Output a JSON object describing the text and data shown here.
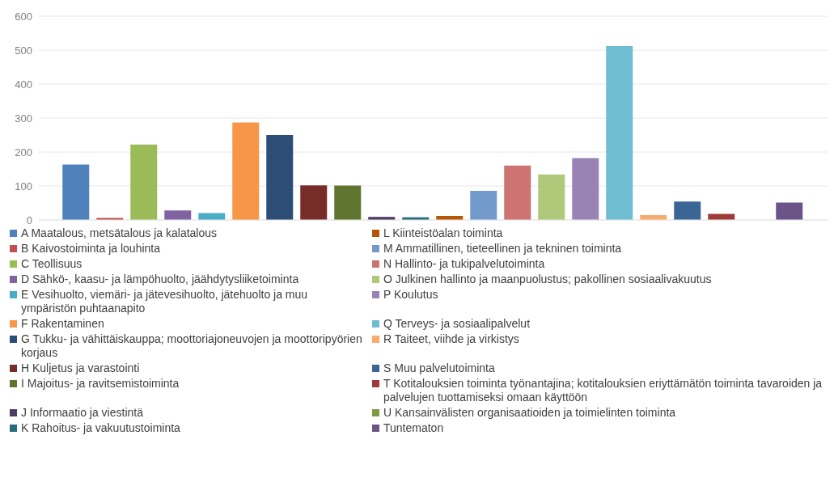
{
  "chart_data": {
    "type": "bar",
    "categories": [
      null
    ],
    "series": [
      {
        "name": "A Maatalous, metsätalous ja kalatalous",
        "color": "#4f81bd",
        "values": [
          163
        ]
      },
      {
        "name": "B Kaivostoiminta ja louhinta",
        "color": "#c0504d",
        "values": [
          6
        ]
      },
      {
        "name": "C Teollisuus",
        "color": "#9bbb59",
        "values": [
          222
        ]
      },
      {
        "name": "D Sähkö-, kaasu- ja lämpöhuolto, jäähdytysliiketoiminta",
        "color": "#8064a2",
        "values": [
          28
        ]
      },
      {
        "name": "E Vesihuolto, viemäri- ja jätevesihuolto, jätehuolto ja muu ympäristön puhtaanapito",
        "color": "#4bacc6",
        "values": [
          20
        ]
      },
      {
        "name": "F Rakentaminen",
        "color": "#f79646",
        "values": [
          287
        ]
      },
      {
        "name": "G Tukku- ja vähittäiskauppa; moottoriajoneuvojen ja moottoripyörien korjaus",
        "color": "#2c4d75",
        "values": [
          250
        ]
      },
      {
        "name": "H Kuljetus ja varastointi",
        "color": "#772c2a",
        "values": [
          102
        ]
      },
      {
        "name": "I Majoitus- ja ravitsemistoiminta",
        "color": "#5f7530",
        "values": [
          101
        ]
      },
      {
        "name": "J Informaatio ja viestintä",
        "color": "#4d3b62",
        "values": [
          9
        ]
      },
      {
        "name": "K Rahoitus- ja vakuutustoiminta",
        "color": "#276a7c",
        "values": [
          8
        ]
      },
      {
        "name": "L Kiinteistöalan toiminta",
        "color": "#b65708",
        "values": [
          12
        ]
      },
      {
        "name": "M Ammatillinen, tieteellinen ja tekninen toiminta",
        "color": "#729aca",
        "values": [
          86
        ]
      },
      {
        "name": "N Hallinto- ja tukipalvelutoiminta",
        "color": "#cd7371",
        "values": [
          160
        ]
      },
      {
        "name": "O Julkinen hallinto ja maanpuolustus; pakollinen sosiaalivakuutus",
        "color": "#afc97a",
        "values": [
          134
        ]
      },
      {
        "name": "P Koulutus",
        "color": "#9983b5",
        "values": [
          182
        ]
      },
      {
        "name": "Q Terveys- ja sosiaalipalvelut",
        "color": "#6fbdd1",
        "values": [
          512
        ]
      },
      {
        "name": "R Taiteet, viihde ja virkistys",
        "color": "#f9ab6b",
        "values": [
          14
        ]
      },
      {
        "name": "S Muu palvelutoiminta",
        "color": "#3a6595",
        "values": [
          54
        ]
      },
      {
        "name": "T Kotitalouksien toiminta työnantajina; kotitalouksien eriyttämätön toiminta tavaroiden ja palvelujen tuottamiseksi omaan käyttöön",
        "color": "#9e3a38",
        "values": [
          18
        ]
      },
      {
        "name": "U Kansainvälisten organisaatioiden ja toimielinten toiminta",
        "color": "#7e9b43",
        "values": [
          0
        ]
      },
      {
        "name": "Tuntematon",
        "color": "#6b5588",
        "values": [
          51
        ]
      }
    ],
    "ylim": [
      0,
      600
    ],
    "yticks": [
      0,
      100,
      200,
      300,
      400,
      500,
      600
    ],
    "grid": "y",
    "legend": "bottom"
  }
}
